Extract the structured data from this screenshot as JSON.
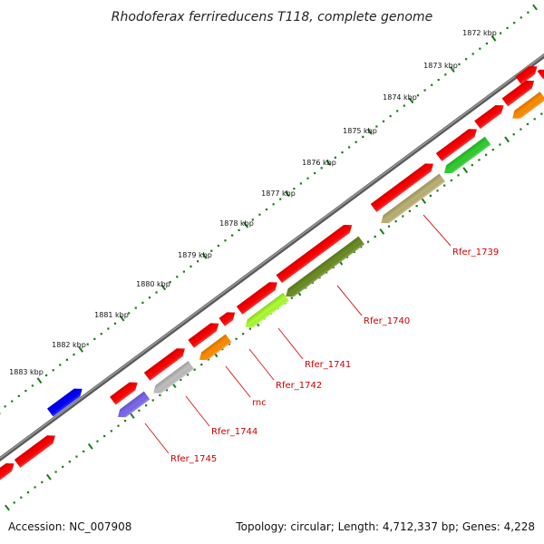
{
  "title": "Rhodoferax ferrireducens T118, complete genome",
  "footer": {
    "accession": "Accession: NC_007908",
    "topology": "Topology: circular; Length: 4,712,337 bp; Genes: 4,228"
  },
  "colors": {
    "backbone": "#7a7a7a",
    "gene_default": "#ff0000",
    "tick": "#1a7a1a",
    "label": "#cc0000",
    "leader": "#dd2222"
  },
  "kbp_labels": [
    "1872 kbp",
    "1873 kbp",
    "1874 kbp",
    "1875 kbp",
    "1876 kbp",
    "1877 kbp",
    "1878 kbp",
    "1879 kbp",
    "1880 kbp",
    "1881 kbp",
    "1882 kbp",
    "1883 kbp"
  ],
  "gene_labels": [
    "Rfer_1739",
    "Rfer_1740",
    "Rfer_1741",
    "Rfer_1742",
    "rnc",
    "Rfer_1744",
    "Rfer_1745"
  ],
  "features": {
    "outer": [
      {
        "color": "#ff0000"
      },
      {
        "color": "#ff0000"
      },
      {
        "color": "#ff0000"
      },
      {
        "color": "#ff0000"
      },
      {
        "color": "#ff0000"
      },
      {
        "color": "#ff0000"
      },
      {
        "color": "#ff0000"
      },
      {
        "color": "#ff0000"
      },
      {
        "color": "#ff0000"
      },
      {
        "color": "#ff0000"
      },
      {
        "color": "#ff0000"
      },
      {
        "color": "#ff0000"
      },
      {
        "color": "#ff0000"
      },
      {
        "color": "#ff0000"
      },
      {
        "color": "#0000ff"
      }
    ],
    "inner": [
      {
        "color": "#ff8c00"
      },
      {
        "color": "#2fcf2f"
      },
      {
        "color": "#bcb274"
      },
      {
        "color": "#6b8e23"
      },
      {
        "color": "#adff2f"
      },
      {
        "color": "#ff8c00"
      },
      {
        "color": "#c0c0c0"
      },
      {
        "color": "#7b68ee"
      }
    ]
  }
}
